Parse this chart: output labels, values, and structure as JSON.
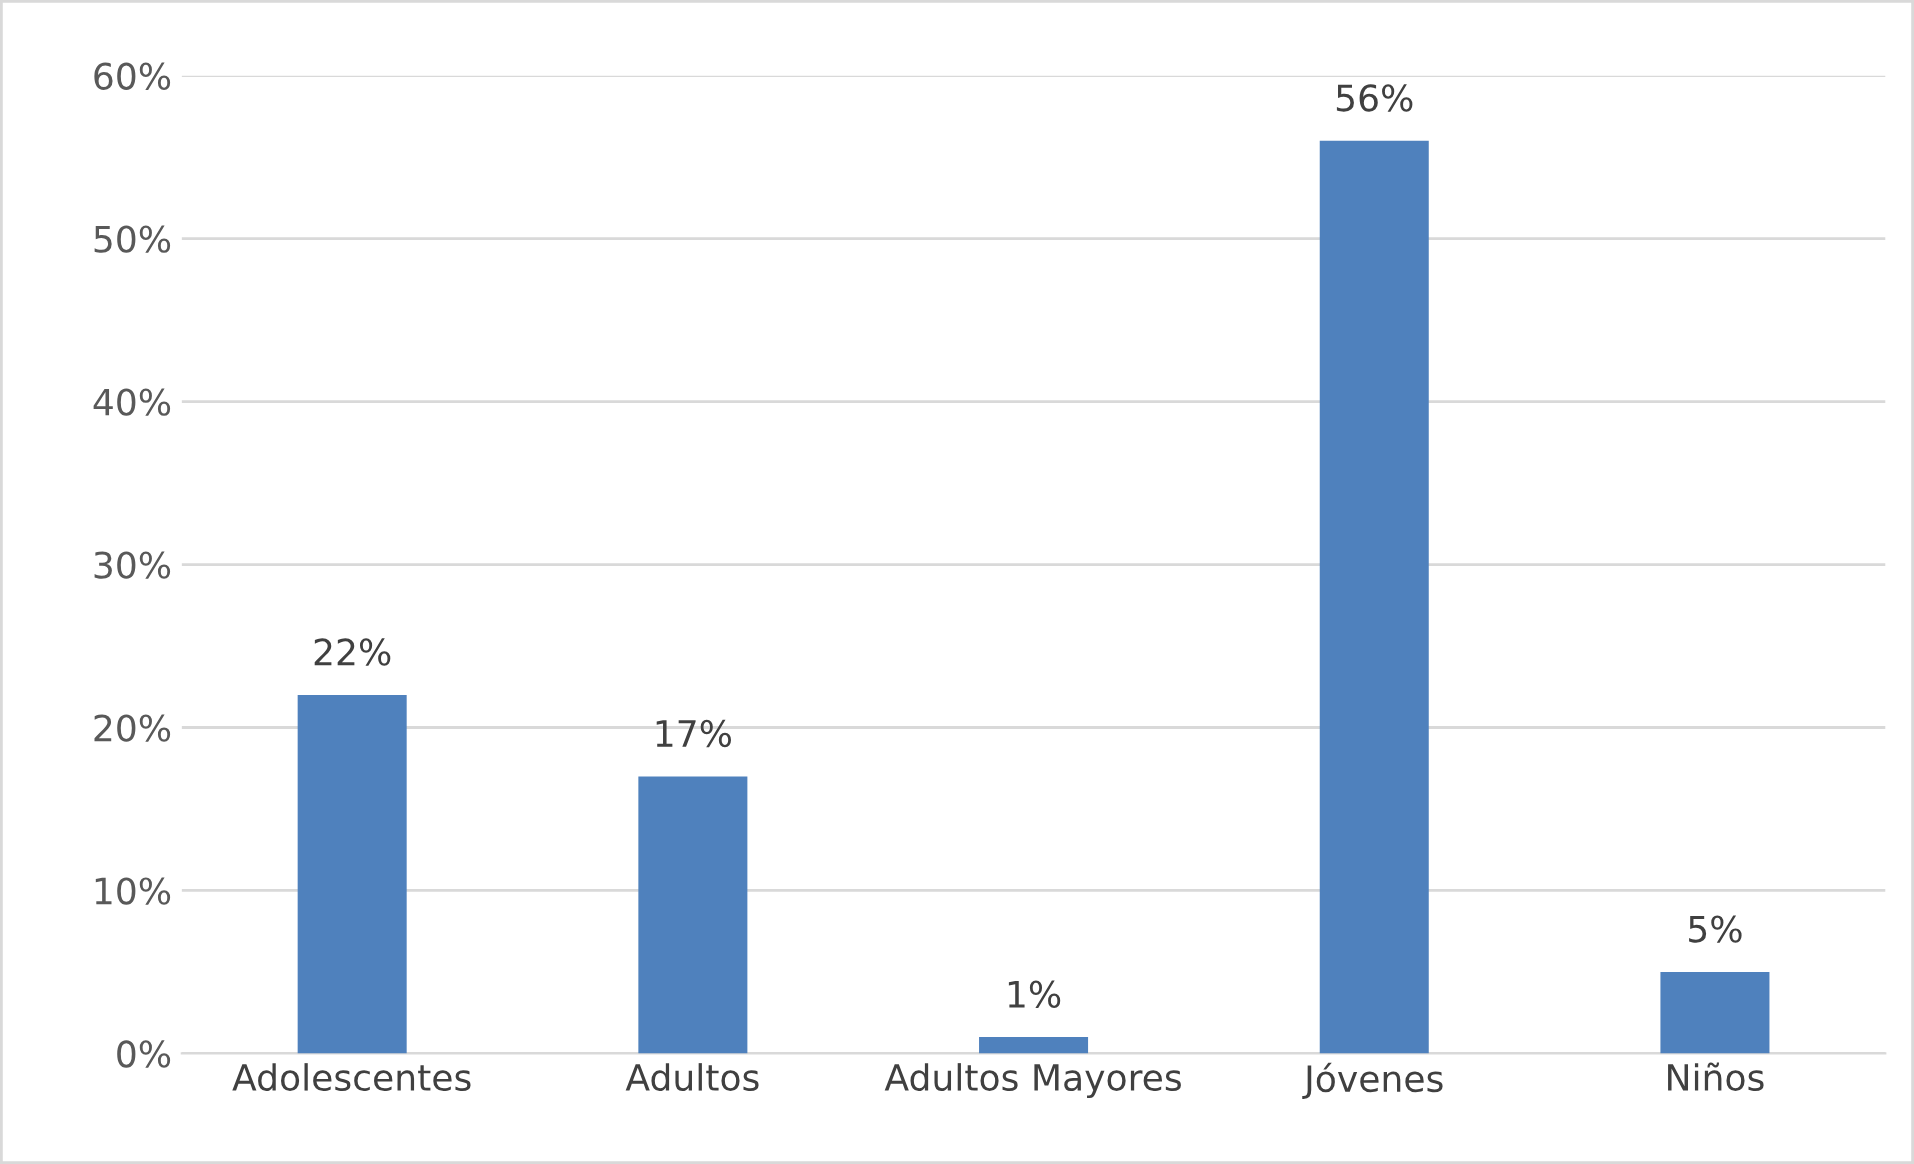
{
  "chart_data": {
    "type": "bar",
    "categories": [
      "Adolescentes",
      "Adultos",
      "Adultos Mayores",
      "Jóvenes",
      "Niños"
    ],
    "values": [
      22,
      17,
      1,
      56,
      5
    ],
    "value_labels": [
      "22%",
      "17%",
      "1%",
      "56%",
      "5%"
    ],
    "color": "#4f81bd",
    "ylim": [
      0,
      60
    ],
    "yticks": [
      {
        "value": 0,
        "label": "0%"
      },
      {
        "value": 10,
        "label": "10%"
      },
      {
        "value": 20,
        "label": "20%"
      },
      {
        "value": 30,
        "label": "30%"
      },
      {
        "value": 40,
        "label": "40%"
      },
      {
        "value": 50,
        "label": "50%"
      },
      {
        "value": 60,
        "label": "60%"
      }
    ],
    "grid": "y",
    "legend": false
  }
}
